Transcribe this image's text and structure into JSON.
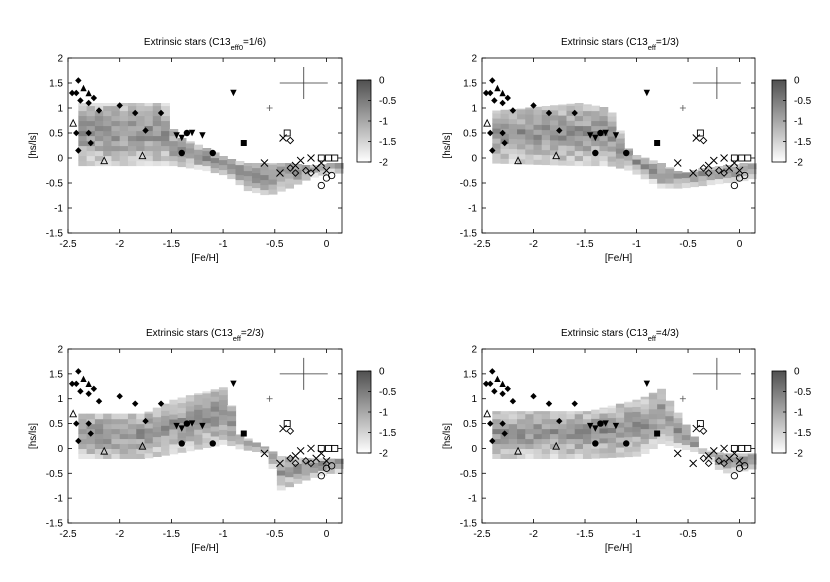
{
  "chart_data": [
    {
      "type": "heatmap",
      "title": "Extrinsic stars (C13",
      "title_sub": "eff0",
      "title_tail": "=1/6)",
      "xlabel": "[Fe/H]",
      "ylabel": "[hs/ls]",
      "xlim": [
        -2.5,
        0.15
      ],
      "ylim": [
        -1.5,
        2
      ],
      "xticks": [
        "-2.5",
        "-2",
        "-1.5",
        "-1",
        "-0.5",
        "0"
      ],
      "yticks": [
        "-1.5",
        "-1",
        "-0.5",
        "0",
        "0.5",
        "1",
        "1.5",
        "2"
      ],
      "colorbar": {
        "ticks": [
          "0",
          "-0.5",
          "-1",
          "-1.5",
          "-2"
        ],
        "range": [
          -2,
          0
        ]
      },
      "error_cross": {
        "x": -0.22,
        "y": 1.5
      },
      "band": [
        {
          "x": -2.4,
          "lo": -0.15,
          "hi": 1.1
        },
        {
          "x": -1.6,
          "lo": -0.15,
          "hi": 1.1
        },
        {
          "x": -1.5,
          "lo": -0.15,
          "hi": 0.45
        },
        {
          "x": -1.2,
          "lo": -0.25,
          "hi": 0.2
        },
        {
          "x": -1.0,
          "lo": -0.35,
          "hi": 0.0
        },
        {
          "x": -0.8,
          "lo": -0.65,
          "hi": -0.1
        },
        {
          "x": -0.6,
          "lo": -0.75,
          "hi": -0.1
        },
        {
          "x": -0.4,
          "lo": -0.6,
          "hi": -0.1
        },
        {
          "x": -0.2,
          "lo": -0.4,
          "hi": -0.15
        },
        {
          "x": 0.0,
          "lo": -0.3,
          "hi": -0.1
        },
        {
          "x": 0.1,
          "lo": -0.3,
          "hi": -0.1
        }
      ]
    },
    {
      "type": "heatmap",
      "title": "Extrinsic stars (C13",
      "title_sub": "eff",
      "title_tail": "=1/3)",
      "xlabel": "[Fe/H]",
      "ylabel": "[hs/ls]",
      "xlim": [
        -2.5,
        0.15
      ],
      "ylim": [
        -1.5,
        2
      ],
      "xticks": [
        "-2.5",
        "-2",
        "-1.5",
        "-1",
        "-0.5",
        "0"
      ],
      "yticks": [
        "-1.5",
        "-1",
        "-0.5",
        "0",
        "0.5",
        "1",
        "1.5",
        "2"
      ],
      "colorbar": {
        "ticks": [
          "0",
          "-0.5",
          "-1",
          "-1.5",
          "-2"
        ],
        "range": [
          -2,
          0
        ]
      },
      "error_cross": {
        "x": -0.22,
        "y": 1.5
      },
      "band": [
        {
          "x": -2.4,
          "lo": -0.1,
          "hi": 0.95
        },
        {
          "x": -1.6,
          "lo": -0.15,
          "hi": 1.1
        },
        {
          "x": -1.3,
          "lo": -0.15,
          "hi": 1.0
        },
        {
          "x": -1.1,
          "lo": -0.25,
          "hi": 0.1
        },
        {
          "x": -0.8,
          "lo": -0.6,
          "hi": -0.1
        },
        {
          "x": -0.6,
          "lo": -0.6,
          "hi": -0.3
        },
        {
          "x": -0.4,
          "lo": -0.55,
          "hi": -0.2
        },
        {
          "x": -0.2,
          "lo": -0.5,
          "hi": -0.15
        },
        {
          "x": 0.0,
          "lo": -0.45,
          "hi": -0.1
        },
        {
          "x": 0.1,
          "lo": -0.4,
          "hi": -0.1
        }
      ]
    },
    {
      "type": "heatmap",
      "title": "Extrinsic stars (C13",
      "title_sub": "eff",
      "title_tail": "=2/3)",
      "xlabel": "[Fe/H]",
      "ylabel": "[hs/ls]",
      "xlim": [
        -2.5,
        0.15
      ],
      "ylim": [
        -1.5,
        2
      ],
      "xticks": [
        "-2.5",
        "-2",
        "-1.5",
        "-1",
        "-0.5",
        "0"
      ],
      "yticks": [
        "-1.5",
        "-1",
        "-0.5",
        "0",
        "0.5",
        "1",
        "1.5",
        "2"
      ],
      "colorbar": {
        "ticks": [
          "0",
          "-0.5",
          "-1",
          "-1.5",
          "-2"
        ],
        "range": [
          -2,
          0
        ]
      },
      "error_cross": {
        "x": -0.22,
        "y": 1.5
      },
      "band": [
        {
          "x": -2.4,
          "lo": -0.2,
          "hi": 0.7
        },
        {
          "x": -1.8,
          "lo": -0.2,
          "hi": 0.7
        },
        {
          "x": -1.5,
          "lo": -0.1,
          "hi": 1.0
        },
        {
          "x": -1.0,
          "lo": 0.1,
          "hi": 1.25
        },
        {
          "x": -0.9,
          "lo": 0.0,
          "hi": 0.3
        },
        {
          "x": -0.6,
          "lo": -0.1,
          "hi": 0.0
        },
        {
          "x": -0.5,
          "lo": -0.85,
          "hi": -0.15
        },
        {
          "x": -0.2,
          "lo": -0.6,
          "hi": -0.2
        },
        {
          "x": 0.0,
          "lo": -0.5,
          "hi": -0.2
        },
        {
          "x": 0.1,
          "lo": -0.5,
          "hi": -0.2
        }
      ]
    },
    {
      "type": "heatmap",
      "title": "Extrinsic stars (C13",
      "title_sub": "eff",
      "title_tail": "=4/3)",
      "xlabel": "[Fe/H]",
      "ylabel": "[hs/ls]",
      "xlim": [
        -2.5,
        0.15
      ],
      "ylim": [
        -1.5,
        2
      ],
      "xticks": [
        "-2.5",
        "-2",
        "-1.5",
        "-1",
        "-0.5",
        "0"
      ],
      "yticks": [
        "-1.5",
        "-1",
        "-0.5",
        "0",
        "0.5",
        "1",
        "1.5",
        "2"
      ],
      "colorbar": {
        "ticks": [
          "0",
          "-0.5",
          "-1",
          "-1.5",
          "-2"
        ],
        "range": [
          -2,
          0
        ]
      },
      "error_cross": {
        "x": -0.22,
        "y": 1.5
      },
      "band": [
        {
          "x": -2.4,
          "lo": -0.2,
          "hi": 0.75
        },
        {
          "x": -1.5,
          "lo": -0.2,
          "hi": 0.75
        },
        {
          "x": -1.0,
          "lo": -0.15,
          "hi": 1.0
        },
        {
          "x": -0.8,
          "lo": 0.1,
          "hi": 1.2
        },
        {
          "x": -0.6,
          "lo": 0.0,
          "hi": 0.6
        },
        {
          "x": -0.4,
          "lo": -0.1,
          "hi": 0.0
        },
        {
          "x": -0.2,
          "lo": -0.5,
          "hi": -0.1
        },
        {
          "x": 0.0,
          "lo": -0.45,
          "hi": -0.1
        },
        {
          "x": 0.1,
          "lo": -0.4,
          "hi": -0.1
        }
      ]
    }
  ],
  "stars": [
    {
      "m": "diamond",
      "x": -2.4,
      "y": 1.55
    },
    {
      "m": "diamond",
      "x": -2.46,
      "y": 1.3
    },
    {
      "m": "diamond",
      "x": -2.42,
      "y": 1.3
    },
    {
      "m": "tri_f",
      "x": -2.35,
      "y": 1.4
    },
    {
      "m": "tri_f",
      "x": -2.3,
      "y": 1.3
    },
    {
      "m": "diamond",
      "x": -2.38,
      "y": 1.15
    },
    {
      "m": "diamond",
      "x": -2.3,
      "y": 1.1
    },
    {
      "m": "diamond",
      "x": -2.25,
      "y": 1.2
    },
    {
      "m": "diamond",
      "x": -2.2,
      "y": 0.95
    },
    {
      "m": "tri_o",
      "x": -2.45,
      "y": 0.7
    },
    {
      "m": "diamond",
      "x": -2.42,
      "y": 0.5
    },
    {
      "m": "diamond",
      "x": -2.4,
      "y": 0.15
    },
    {
      "m": "diamond",
      "x": -2.3,
      "y": 0.5
    },
    {
      "m": "diamond",
      "x": -2.28,
      "y": 0.3
    },
    {
      "m": "diamond",
      "x": -2.0,
      "y": 1.05
    },
    {
      "m": "diamond",
      "x": -1.85,
      "y": 0.9
    },
    {
      "m": "diamond",
      "x": -1.75,
      "y": 0.55
    },
    {
      "m": "diamond",
      "x": -1.6,
      "y": 0.9
    },
    {
      "m": "tri_o",
      "x": -2.15,
      "y": -0.05
    },
    {
      "m": "tri_o",
      "x": -1.78,
      "y": 0.05
    },
    {
      "m": "tri_inv",
      "x": -1.4,
      "y": 0.4
    },
    {
      "m": "tri_inv",
      "x": -1.45,
      "y": 0.45
    },
    {
      "m": "tri_inv",
      "x": -1.3,
      "y": 0.5
    },
    {
      "m": "tri_inv",
      "x": -1.2,
      "y": 0.45
    },
    {
      "m": "tri_inv",
      "x": -0.9,
      "y": 1.3
    },
    {
      "m": "circle",
      "x": -1.35,
      "y": 0.5
    },
    {
      "m": "circle",
      "x": -1.4,
      "y": 0.1
    },
    {
      "m": "circle",
      "x": -1.1,
      "y": 0.1
    },
    {
      "m": "square",
      "x": -0.8,
      "y": 0.3
    },
    {
      "m": "plus",
      "x": -0.55,
      "y": 1.0
    },
    {
      "m": "sq_o",
      "x": -0.38,
      "y": 0.5
    },
    {
      "m": "x",
      "x": -0.42,
      "y": 0.4
    },
    {
      "m": "dia_o",
      "x": -0.35,
      "y": 0.35
    },
    {
      "m": "x",
      "x": -0.6,
      "y": -0.1
    },
    {
      "m": "x",
      "x": -0.25,
      "y": -0.05
    },
    {
      "m": "x",
      "x": -0.15,
      "y": 0.0
    },
    {
      "m": "x",
      "x": -0.05,
      "y": -0.1
    },
    {
      "m": "sq_o",
      "x": -0.05,
      "y": 0.0
    },
    {
      "m": "sq_o",
      "x": 0.02,
      "y": 0.0
    },
    {
      "m": "sq_o",
      "x": 0.08,
      "y": 0.0
    },
    {
      "m": "x",
      "x": -0.1,
      "y": -0.2
    },
    {
      "m": "x",
      "x": 0.0,
      "y": -0.25
    },
    {
      "m": "dia_o",
      "x": -0.35,
      "y": -0.2
    },
    {
      "m": "dia_o",
      "x": -0.3,
      "y": -0.3
    },
    {
      "m": "dia_o",
      "x": -0.2,
      "y": -0.25
    },
    {
      "m": "dia_o",
      "x": -0.15,
      "y": -0.3
    },
    {
      "m": "circ_o",
      "x": -0.05,
      "y": -0.55
    },
    {
      "m": "circ_o",
      "x": 0.0,
      "y": -0.4
    },
    {
      "m": "circ_o",
      "x": 0.05,
      "y": -0.35
    },
    {
      "m": "x",
      "x": -0.3,
      "y": -0.15
    },
    {
      "m": "x",
      "x": -0.45,
      "y": -0.3
    }
  ]
}
